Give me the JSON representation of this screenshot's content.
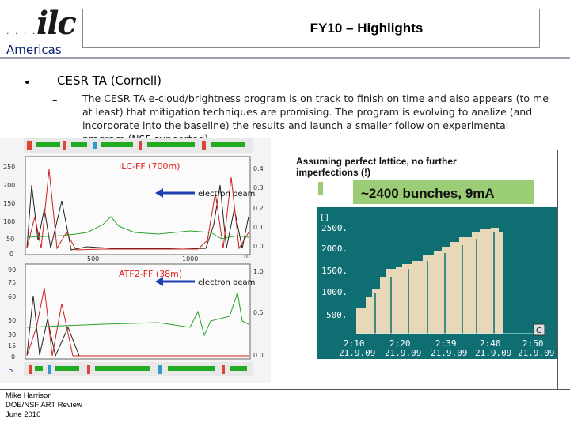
{
  "header": {
    "logo_text": "ilc",
    "logo_dots": "· · · ·",
    "region": "Americas",
    "title": "FY10 – Highlights"
  },
  "body": {
    "bullet": "•",
    "heading": "CESR TA (Cornell)",
    "dash": "–",
    "paragraph": "The CESR TA e-cloud/brightness program is on track to finish on time and also appears (to me at least) that mitigation techniques are promising.  The program is evolving to analize (and incorporate into the baseline) the results and launch a smaller follow on experimental program (NSF supported)."
  },
  "left_figure": {
    "top_panel": {
      "label": "ILC-FF (700m)",
      "beam": "electron beam",
      "y_ticks": [
        "250",
        "200",
        "150",
        "100",
        "50",
        "0"
      ],
      "right_ticks": [
        "0.4",
        "0.3",
        "0.2",
        "0.1",
        "0.0"
      ],
      "x_ticks": [
        "500",
        "1000"
      ],
      "x_unit": "m"
    },
    "bottom_panel": {
      "label": "ATF2-FF (38m)",
      "beam": "electron beam",
      "y_ticks": [
        "90",
        "75",
        "60",
        "50",
        "30",
        "15",
        "0"
      ],
      "right_ticks": [
        "1.0",
        "0.5",
        "0.0"
      ]
    },
    "axis_letter": "P",
    "colors": {
      "black_curve": "#222222",
      "red_curve": "#d02020",
      "green_curve": "#2aa02a",
      "label_red": "#e0201e",
      "arrow_blue": "#1f3fb0"
    }
  },
  "right_figure": {
    "note_line1": "Assuming perfect lattice, no further",
    "note_line2": "imperfections (!)",
    "headline": "~2400 bunches, 9mA",
    "y_unit": "[]",
    "y_ticks": [
      "2500.",
      "2000.",
      "1500.",
      "1000.",
      "500."
    ],
    "x_ticks": [
      {
        "time": "2:10",
        "date": "21.9.09"
      },
      {
        "time": "2:20",
        "date": "21.9.09"
      },
      {
        "time": "2:39",
        "date": "21.9.09"
      },
      {
        "time": "2:40",
        "date": "21.9.09"
      },
      {
        "time": "2:50",
        "date": "21.9.09"
      }
    ],
    "corner_button": "C",
    "colors": {
      "bg": "#0f6e72",
      "fill": "#e6d8b8",
      "headline_bg": "#9acd76"
    }
  },
  "footer": {
    "line1": "Mike Harrison",
    "line2": "DOE/NSF ART Review",
    "line3": "June 2010"
  }
}
